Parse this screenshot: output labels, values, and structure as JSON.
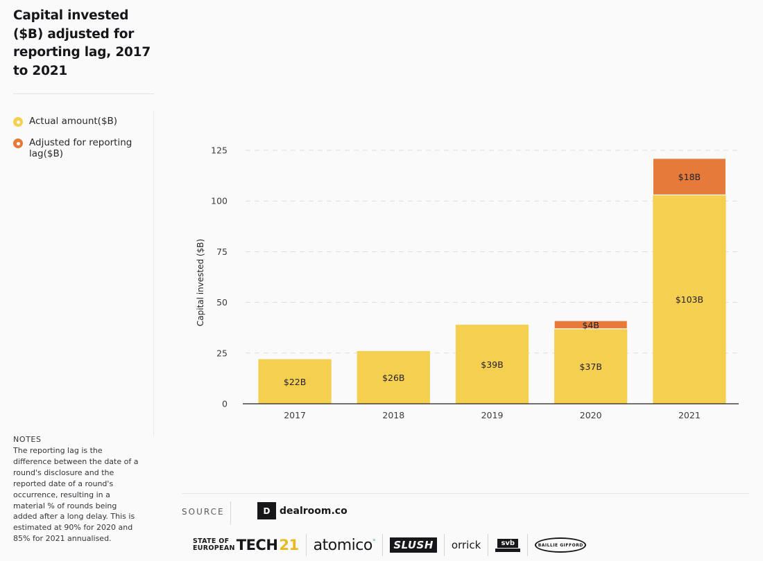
{
  "title": "Capital invested ($B) adjusted for reporting lag, 2017 to 2021",
  "legend": [
    {
      "label": "Actual amount($B)",
      "color": "#f5cf4f"
    },
    {
      "label": "Adjusted for reporting lag($B)",
      "color": "#e57a3a"
    }
  ],
  "notes": {
    "heading": "NOTES",
    "body": "The reporting lag is the difference between the date of a round's disclosure and the reported date of a round's occurrence, resulting in a material % of rounds being added after a long delay. This is estimated at 90% for 2020 and 85% for 2021 annualised."
  },
  "footer": {
    "source_label": "SOURCE",
    "source_name": "dealroom.co",
    "source_mark": "D",
    "partners": {
      "sot_line1": "STATE OF",
      "sot_line2": "EUROPEAN",
      "sot_tech": "TECH",
      "sot_num": "21",
      "atomico": "atomico",
      "slush": "SLUSH",
      "orrick": "orrick",
      "svb": "svb",
      "baillie": "BAILLIE GIFFORD"
    }
  },
  "chart_data": {
    "type": "bar",
    "stacked": true,
    "categories": [
      "2017",
      "2018",
      "2019",
      "2020",
      "2021"
    ],
    "series": [
      {
        "name": "Actual amount($B)",
        "color": "#f5cf4f",
        "values": [
          22,
          26,
          39,
          37,
          103
        ],
        "labels": [
          "$22B",
          "$26B",
          "$39B",
          "$37B",
          "$103B"
        ]
      },
      {
        "name": "Adjusted for reporting lag($B)",
        "color": "#e57a3a",
        "values": [
          0,
          0,
          0,
          4,
          18
        ],
        "labels": [
          "",
          "",
          "",
          "$4B",
          "$18B"
        ]
      }
    ],
    "ylabel": "Capital invested ($B)",
    "xlabel": "",
    "ylim": [
      0,
      125
    ],
    "yticks": [
      0,
      25,
      50,
      75,
      100,
      125
    ],
    "grid": true
  }
}
